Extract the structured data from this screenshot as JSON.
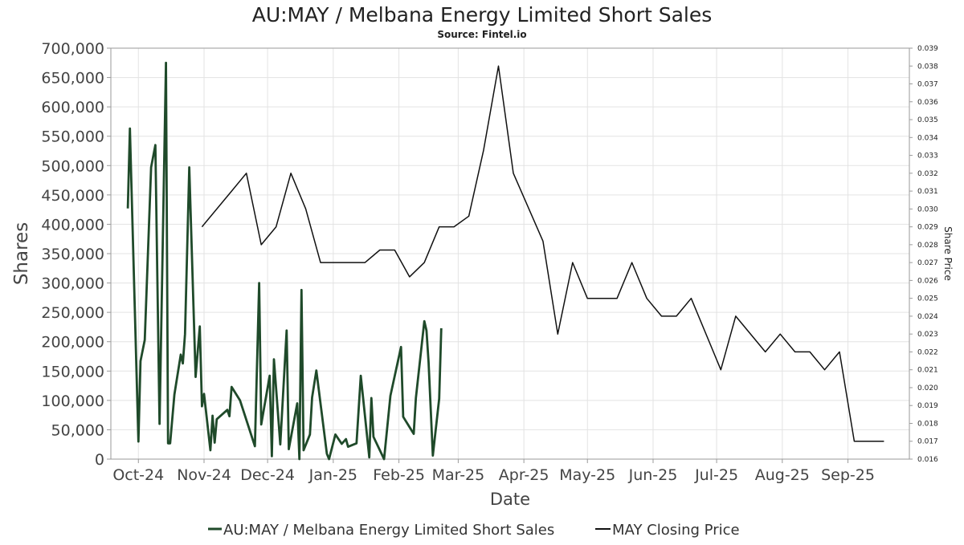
{
  "chart_data": {
    "type": "line",
    "title": "AU:MAY / Melbana Energy Limited Short Sales",
    "subtitle": "Source: Fintel.io",
    "xlabel": "Date",
    "ylabel": "Shares",
    "y2label": "Share Price",
    "x_ticks": [
      {
        "date": "2024-10-01",
        "label": "Oct-24"
      },
      {
        "date": "2024-11-01",
        "label": "Nov-24"
      },
      {
        "date": "2024-12-01",
        "label": "Dec-24"
      },
      {
        "date": "2025-01-01",
        "label": "Jan-25"
      },
      {
        "date": "2025-02-01",
        "label": "Feb-25"
      },
      {
        "date": "2025-03-01",
        "label": "Mar-25"
      },
      {
        "date": "2025-04-01",
        "label": "Apr-25"
      },
      {
        "date": "2025-05-01",
        "label": "May-25"
      },
      {
        "date": "2025-06-01",
        "label": "Jun-25"
      },
      {
        "date": "2025-07-01",
        "label": "Jul-25"
      },
      {
        "date": "2025-08-01",
        "label": "Aug-25"
      },
      {
        "date": "2025-09-01",
        "label": "Sep-25"
      }
    ],
    "xlim": [
      "2024-09-18",
      "2025-09-30"
    ],
    "ylim": [
      0,
      700000
    ],
    "y_ticks": [
      0,
      50000,
      100000,
      150000,
      200000,
      250000,
      300000,
      350000,
      400000,
      450000,
      500000,
      550000,
      600000,
      650000,
      700000
    ],
    "y_tick_labels": [
      "0",
      "50,000",
      "100,000",
      "150,000",
      "200,000",
      "250,000",
      "300,000",
      "350,000",
      "400,000",
      "450,000",
      "500,000",
      "550,000",
      "600,000",
      "650,000",
      "700,000"
    ],
    "y2lim": [
      0.016,
      0.039
    ],
    "y2_ticks": [
      0.016,
      0.017,
      0.018,
      0.019,
      0.02,
      0.021,
      0.022,
      0.023,
      0.024,
      0.025,
      0.026,
      0.027,
      0.028,
      0.029,
      0.03,
      0.031,
      0.032,
      0.033,
      0.034,
      0.035,
      0.036,
      0.037,
      0.038,
      0.039
    ],
    "y2_tick_labels": [
      "0.016",
      "0.017",
      "0.018",
      "0.019",
      "0.020",
      "0.021",
      "0.022",
      "0.023",
      "0.024",
      "0.025",
      "0.026",
      "0.027",
      "0.028",
      "0.029",
      "0.030",
      "0.031",
      "0.032",
      "0.033",
      "0.034",
      "0.035",
      "0.036",
      "0.037",
      "0.038",
      "0.039"
    ],
    "grid": true,
    "legend_position": "bottom-center",
    "series": [
      {
        "name": "AU:MAY / Melbana Energy Limited Short Sales",
        "axis": "left",
        "color": "#1f4a2a",
        "points": [
          [
            "2024-09-26",
            427000
          ],
          [
            "2024-09-27",
            563000
          ],
          [
            "2024-09-30",
            165000
          ],
          [
            "2024-10-01",
            30000
          ],
          [
            "2024-10-02",
            167000
          ],
          [
            "2024-10-04",
            203000
          ],
          [
            "2024-10-07",
            497000
          ],
          [
            "2024-10-09",
            535000
          ],
          [
            "2024-10-11",
            60000
          ],
          [
            "2024-10-14",
            675000
          ],
          [
            "2024-10-15",
            27000
          ],
          [
            "2024-10-16",
            27000
          ],
          [
            "2024-10-18",
            110000
          ],
          [
            "2024-10-21",
            178000
          ],
          [
            "2024-10-22",
            163000
          ],
          [
            "2024-10-23",
            213000
          ],
          [
            "2024-10-25",
            497000
          ],
          [
            "2024-10-28",
            140000
          ],
          [
            "2024-10-30",
            226000
          ],
          [
            "2024-10-31",
            90000
          ],
          [
            "2024-11-01",
            111000
          ],
          [
            "2024-11-04",
            15000
          ],
          [
            "2024-11-05",
            74000
          ],
          [
            "2024-11-06",
            28000
          ],
          [
            "2024-11-07",
            68000
          ],
          [
            "2024-11-12",
            84000
          ],
          [
            "2024-11-13",
            73000
          ],
          [
            "2024-11-14",
            123000
          ],
          [
            "2024-11-18",
            100000
          ],
          [
            "2024-11-25",
            22000
          ],
          [
            "2024-11-27",
            300000
          ],
          [
            "2024-11-28",
            59000
          ],
          [
            "2024-12-02",
            142000
          ],
          [
            "2024-12-03",
            5000
          ],
          [
            "2024-12-04",
            170000
          ],
          [
            "2024-12-07",
            25000
          ],
          [
            "2024-12-10",
            219000
          ],
          [
            "2024-12-11",
            17000
          ],
          [
            "2024-12-15",
            95000
          ],
          [
            "2024-12-16",
            0
          ],
          [
            "2024-12-17",
            288000
          ],
          [
            "2024-12-18",
            15000
          ],
          [
            "2024-12-21",
            42000
          ],
          [
            "2024-12-22",
            105000
          ],
          [
            "2024-12-24",
            151000
          ],
          [
            "2024-12-29",
            9000
          ],
          [
            "2024-12-30",
            0
          ],
          [
            "2025-01-02",
            42000
          ],
          [
            "2025-01-05",
            26000
          ],
          [
            "2025-01-07",
            34000
          ],
          [
            "2025-01-08",
            21000
          ],
          [
            "2025-01-12",
            27000
          ],
          [
            "2025-01-14",
            142000
          ],
          [
            "2025-01-18",
            3000
          ],
          [
            "2025-01-19",
            104000
          ],
          [
            "2025-01-20",
            38000
          ],
          [
            "2025-01-25",
            0
          ],
          [
            "2025-01-28",
            108000
          ],
          [
            "2025-02-02",
            191000
          ],
          [
            "2025-02-03",
            72000
          ],
          [
            "2025-02-08",
            43000
          ],
          [
            "2025-02-09",
            104000
          ],
          [
            "2025-02-13",
            235000
          ],
          [
            "2025-02-14",
            219000
          ],
          [
            "2025-02-15",
            165000
          ],
          [
            "2025-02-17",
            6000
          ],
          [
            "2025-02-20",
            103000
          ],
          [
            "2025-02-21",
            223000
          ]
        ]
      },
      {
        "name": "MAY Closing Price",
        "axis": "right",
        "color": "#111111",
        "points": [
          [
            "2024-10-31",
            0.029
          ],
          [
            "2024-11-14",
            0.031
          ],
          [
            "2024-11-21",
            0.032
          ],
          [
            "2024-11-28",
            0.028
          ],
          [
            "2024-12-05",
            0.029
          ],
          [
            "2024-12-12",
            0.032
          ],
          [
            "2024-12-19",
            0.03
          ],
          [
            "2024-12-26",
            0.027
          ],
          [
            "2025-01-16",
            0.027
          ],
          [
            "2025-01-23",
            0.0277
          ],
          [
            "2025-01-30",
            0.0277
          ],
          [
            "2025-02-06",
            0.0262
          ],
          [
            "2025-02-13",
            0.027
          ],
          [
            "2025-02-20",
            0.029
          ],
          [
            "2025-02-27",
            0.029
          ],
          [
            "2025-03-06",
            0.0296
          ],
          [
            "2025-03-13",
            0.0333
          ],
          [
            "2025-03-20",
            0.038
          ],
          [
            "2025-03-27",
            0.032
          ],
          [
            "2025-04-10",
            0.0282
          ],
          [
            "2025-04-17",
            0.023
          ],
          [
            "2025-04-24",
            0.027
          ],
          [
            "2025-05-01",
            0.025
          ],
          [
            "2025-05-15",
            0.025
          ],
          [
            "2025-05-22",
            0.027
          ],
          [
            "2025-05-29",
            0.025
          ],
          [
            "2025-06-05",
            0.024
          ],
          [
            "2025-06-12",
            0.024
          ],
          [
            "2025-06-19",
            0.025
          ],
          [
            "2025-07-03",
            0.021
          ],
          [
            "2025-07-10",
            0.024
          ],
          [
            "2025-07-24",
            0.022
          ],
          [
            "2025-07-31",
            0.023
          ],
          [
            "2025-08-07",
            0.022
          ],
          [
            "2025-08-14",
            0.022
          ],
          [
            "2025-08-21",
            0.021
          ],
          [
            "2025-08-28",
            0.022
          ],
          [
            "2025-09-04",
            0.017
          ],
          [
            "2025-09-11",
            0.017
          ],
          [
            "2025-09-18",
            0.017
          ]
        ]
      }
    ]
  }
}
